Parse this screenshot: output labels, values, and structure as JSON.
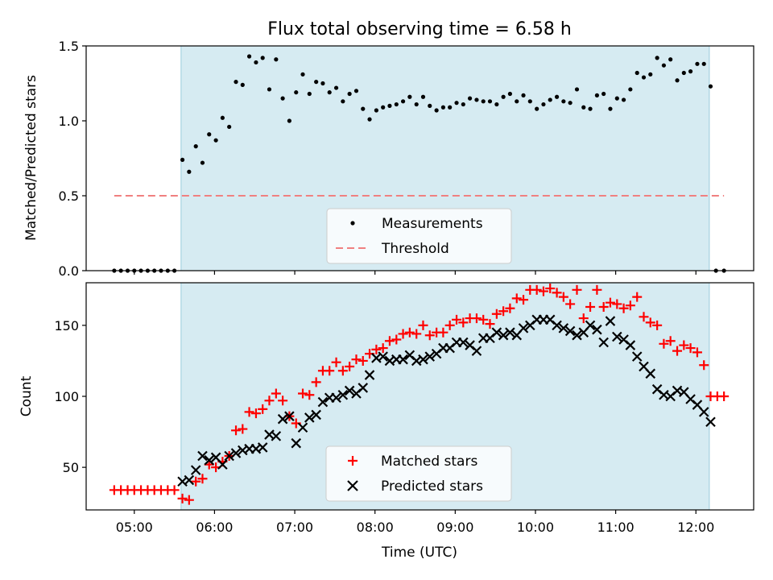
{
  "chart_data": [
    {
      "type": "scatter",
      "title": "Flux total observing time = 6.58 h",
      "ylabel": "Matched/Predicted stars",
      "ylim": [
        0,
        1.5
      ],
      "yticks": [
        "0.0",
        "0.5",
        "1.0",
        "1.5"
      ],
      "xlim_hours": [
        4.4,
        12.72
      ],
      "shaded_span_hours": [
        5.583,
        12.167
      ],
      "threshold": {
        "value": 0.5,
        "x_range_hours": [
          4.75,
          12.35
        ],
        "color": "#f08080"
      },
      "legend_location": "lower center",
      "legend": [
        "Measurements",
        "Threshold"
      ],
      "series": [
        {
          "name": "Measurements",
          "color": "#000000",
          "points": [
            [
              4.75,
              0
            ],
            [
              4.833,
              0
            ],
            [
              4.917,
              0
            ],
            [
              5.0,
              0
            ],
            [
              5.083,
              0
            ],
            [
              5.167,
              0
            ],
            [
              5.25,
              0
            ],
            [
              5.333,
              0
            ],
            [
              5.417,
              0
            ],
            [
              5.5,
              0
            ],
            [
              5.6,
              0.74
            ],
            [
              5.683,
              0.66
            ],
            [
              5.767,
              0.83
            ],
            [
              5.85,
              0.72
            ],
            [
              5.933,
              0.91
            ],
            [
              6.017,
              0.87
            ],
            [
              6.1,
              1.02
            ],
            [
              6.183,
              0.96
            ],
            [
              6.267,
              1.26
            ],
            [
              6.35,
              1.24
            ],
            [
              6.433,
              1.43
            ],
            [
              6.517,
              1.39
            ],
            [
              6.6,
              1.42
            ],
            [
              6.683,
              1.21
            ],
            [
              6.767,
              1.41
            ],
            [
              6.85,
              1.15
            ],
            [
              6.933,
              1.0
            ],
            [
              7.017,
              1.19
            ],
            [
              7.1,
              1.31
            ],
            [
              7.183,
              1.18
            ],
            [
              7.267,
              1.26
            ],
            [
              7.35,
              1.25
            ],
            [
              7.433,
              1.19
            ],
            [
              7.517,
              1.22
            ],
            [
              7.6,
              1.13
            ],
            [
              7.683,
              1.18
            ],
            [
              7.767,
              1.2
            ],
            [
              7.85,
              1.08
            ],
            [
              7.933,
              1.01
            ],
            [
              8.017,
              1.07
            ],
            [
              8.1,
              1.09
            ],
            [
              8.183,
              1.1
            ],
            [
              8.267,
              1.11
            ],
            [
              8.35,
              1.13
            ],
            [
              8.433,
              1.16
            ],
            [
              8.517,
              1.11
            ],
            [
              8.6,
              1.16
            ],
            [
              8.683,
              1.1
            ],
            [
              8.767,
              1.07
            ],
            [
              8.85,
              1.09
            ],
            [
              8.933,
              1.09
            ],
            [
              9.017,
              1.12
            ],
            [
              9.1,
              1.11
            ],
            [
              9.183,
              1.15
            ],
            [
              9.267,
              1.14
            ],
            [
              9.35,
              1.13
            ],
            [
              9.433,
              1.13
            ],
            [
              9.517,
              1.11
            ],
            [
              9.6,
              1.16
            ],
            [
              9.683,
              1.18
            ],
            [
              9.767,
              1.13
            ],
            [
              9.85,
              1.17
            ],
            [
              9.933,
              1.13
            ],
            [
              10.017,
              1.08
            ],
            [
              10.1,
              1.11
            ],
            [
              10.183,
              1.14
            ],
            [
              10.267,
              1.16
            ],
            [
              10.35,
              1.13
            ],
            [
              10.433,
              1.12
            ],
            [
              10.517,
              1.21
            ],
            [
              10.6,
              1.09
            ],
            [
              10.683,
              1.08
            ],
            [
              10.767,
              1.17
            ],
            [
              10.85,
              1.18
            ],
            [
              10.933,
              1.08
            ],
            [
              11.017,
              1.15
            ],
            [
              11.1,
              1.14
            ],
            [
              11.183,
              1.21
            ],
            [
              11.267,
              1.32
            ],
            [
              11.35,
              1.29
            ],
            [
              11.433,
              1.31
            ],
            [
              11.517,
              1.42
            ],
            [
              11.6,
              1.37
            ],
            [
              11.683,
              1.41
            ],
            [
              11.767,
              1.27
            ],
            [
              11.85,
              1.32
            ],
            [
              11.933,
              1.33
            ],
            [
              12.017,
              1.38
            ],
            [
              12.1,
              1.38
            ],
            [
              12.183,
              1.23
            ],
            [
              12.25,
              0
            ],
            [
              12.35,
              0
            ]
          ]
        }
      ]
    },
    {
      "type": "scatter",
      "title": "",
      "xlabel": "Time (UTC)",
      "ylabel": "Count",
      "ylim": [
        20,
        180
      ],
      "yticks": [
        "50",
        "100",
        "150"
      ],
      "xticks": [
        "05:00",
        "06:00",
        "07:00",
        "08:00",
        "09:00",
        "10:00",
        "11:00",
        "12:00"
      ],
      "xlim_hours": [
        4.4,
        12.72
      ],
      "shaded_span_hours": [
        5.583,
        12.167
      ],
      "legend_location": "lower center",
      "legend": [
        "Matched stars",
        "Predicted stars"
      ],
      "series": [
        {
          "name": "Matched stars",
          "marker": "plus",
          "color": "#ff0000",
          "points": [
            [
              4.75,
              34
            ],
            [
              4.833,
              34
            ],
            [
              4.917,
              34
            ],
            [
              5.0,
              34
            ],
            [
              5.083,
              34
            ],
            [
              5.167,
              34
            ],
            [
              5.25,
              34
            ],
            [
              5.333,
              34
            ],
            [
              5.417,
              34
            ],
            [
              5.5,
              34
            ],
            [
              5.6,
              28
            ],
            [
              5.683,
              27
            ],
            [
              5.767,
              40
            ],
            [
              5.85,
              42
            ],
            [
              5.933,
              52
            ],
            [
              6.017,
              50
            ],
            [
              6.1,
              54
            ],
            [
              6.183,
              58
            ],
            [
              6.267,
              76
            ],
            [
              6.35,
              77
            ],
            [
              6.433,
              89
            ],
            [
              6.517,
              88
            ],
            [
              6.6,
              91
            ],
            [
              6.683,
              97
            ],
            [
              6.767,
              102
            ],
            [
              6.85,
              97
            ],
            [
              6.933,
              86
            ],
            [
              7.017,
              81
            ],
            [
              7.1,
              102
            ],
            [
              7.183,
              101
            ],
            [
              7.267,
              110
            ],
            [
              7.35,
              118
            ],
            [
              7.433,
              118
            ],
            [
              7.517,
              124
            ],
            [
              7.6,
              118
            ],
            [
              7.683,
              121
            ],
            [
              7.767,
              126
            ],
            [
              7.85,
              125
            ],
            [
              7.933,
              130
            ],
            [
              8.017,
              133
            ],
            [
              8.1,
              134
            ],
            [
              8.183,
              139
            ],
            [
              8.267,
              140
            ],
            [
              8.35,
              144
            ],
            [
              8.433,
              145
            ],
            [
              8.517,
              144
            ],
            [
              8.6,
              150
            ],
            [
              8.683,
              143
            ],
            [
              8.767,
              145
            ],
            [
              8.85,
              145
            ],
            [
              8.933,
              150
            ],
            [
              9.017,
              154
            ],
            [
              9.1,
              152
            ],
            [
              9.183,
              155
            ],
            [
              9.267,
              155
            ],
            [
              9.35,
              154
            ],
            [
              9.433,
              151
            ],
            [
              9.517,
              158
            ],
            [
              9.6,
              160
            ],
            [
              9.683,
              162
            ],
            [
              9.767,
              169
            ],
            [
              9.85,
              168
            ],
            [
              9.933,
              175
            ],
            [
              10.017,
              175
            ],
            [
              10.1,
              174
            ],
            [
              10.183,
              176
            ],
            [
              10.267,
              173
            ],
            [
              10.35,
              170
            ],
            [
              10.433,
              165
            ],
            [
              10.517,
              175
            ],
            [
              10.6,
              155
            ],
            [
              10.683,
              163
            ],
            [
              10.767,
              175
            ],
            [
              10.85,
              163
            ],
            [
              10.933,
              166
            ],
            [
              11.017,
              165
            ],
            [
              11.1,
              162
            ],
            [
              11.183,
              164
            ],
            [
              11.267,
              170
            ],
            [
              11.35,
              156
            ],
            [
              11.433,
              152
            ],
            [
              11.517,
              150
            ],
            [
              11.6,
              137
            ],
            [
              11.683,
              139
            ],
            [
              11.767,
              132
            ],
            [
              11.85,
              136
            ],
            [
              11.933,
              134
            ],
            [
              12.017,
              131
            ],
            [
              12.1,
              122
            ],
            [
              12.183,
              100
            ],
            [
              12.267,
              100
            ],
            [
              12.35,
              100
            ]
          ]
        },
        {
          "name": "Predicted stars",
          "marker": "x",
          "color": "#000000",
          "points": [
            [
              5.6,
              40
            ],
            [
              5.683,
              41
            ],
            [
              5.767,
              48
            ],
            [
              5.85,
              58
            ],
            [
              5.933,
              55
            ],
            [
              6.017,
              57
            ],
            [
              6.1,
              52
            ],
            [
              6.183,
              58
            ],
            [
              6.267,
              60
            ],
            [
              6.35,
              62
            ],
            [
              6.433,
              63
            ],
            [
              6.517,
              63
            ],
            [
              6.6,
              64
            ],
            [
              6.683,
              73
            ],
            [
              6.767,
              72
            ],
            [
              6.85,
              84
            ],
            [
              6.933,
              86
            ],
            [
              7.017,
              67
            ],
            [
              7.1,
              78
            ],
            [
              7.183,
              85
            ],
            [
              7.267,
              87
            ],
            [
              7.35,
              96
            ],
            [
              7.433,
              99
            ],
            [
              7.517,
              99
            ],
            [
              7.6,
              101
            ],
            [
              7.683,
              104
            ],
            [
              7.767,
              102
            ],
            [
              7.85,
              106
            ],
            [
              7.933,
              115
            ],
            [
              8.017,
              127
            ],
            [
              8.1,
              128
            ],
            [
              8.183,
              125
            ],
            [
              8.267,
              126
            ],
            [
              8.35,
              126
            ],
            [
              8.433,
              129
            ],
            [
              8.517,
              125
            ],
            [
              8.6,
              126
            ],
            [
              8.683,
              128
            ],
            [
              8.767,
              130
            ],
            [
              8.85,
              134
            ],
            [
              8.933,
              134
            ],
            [
              9.017,
              138
            ],
            [
              9.1,
              138
            ],
            [
              9.183,
              136
            ],
            [
              9.267,
              132
            ],
            [
              9.35,
              141
            ],
            [
              9.433,
              141
            ],
            [
              9.517,
              145
            ],
            [
              9.6,
              143
            ],
            [
              9.683,
              145
            ],
            [
              9.767,
              143
            ],
            [
              9.85,
              148
            ],
            [
              9.933,
              150
            ],
            [
              10.017,
              154
            ],
            [
              10.1,
              154
            ],
            [
              10.183,
              154
            ],
            [
              10.267,
              150
            ],
            [
              10.35,
              148
            ],
            [
              10.433,
              146
            ],
            [
              10.517,
              143
            ],
            [
              10.6,
              145
            ],
            [
              10.683,
              150
            ],
            [
              10.767,
              147
            ],
            [
              10.85,
              138
            ],
            [
              10.933,
              153
            ],
            [
              11.017,
              142
            ],
            [
              11.1,
              140
            ],
            [
              11.183,
              136
            ],
            [
              11.267,
              128
            ],
            [
              11.35,
              121
            ],
            [
              11.433,
              116
            ],
            [
              11.517,
              105
            ],
            [
              11.6,
              101
            ],
            [
              11.683,
              100
            ],
            [
              11.767,
              104
            ],
            [
              11.85,
              103
            ],
            [
              11.933,
              98
            ],
            [
              12.017,
              94
            ],
            [
              12.1,
              89
            ],
            [
              12.183,
              82
            ]
          ]
        }
      ]
    }
  ]
}
